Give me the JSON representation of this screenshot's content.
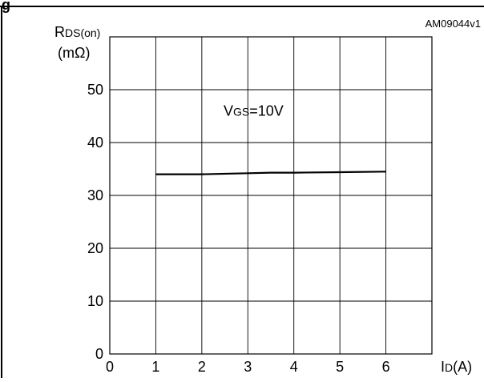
{
  "figure_label": "g",
  "ref_code": "AM09044v1",
  "chart_data": {
    "type": "line",
    "ylabel_main": "R",
    "ylabel_sub": "DS(on)",
    "ylabel_unit": "(mΩ)",
    "xlabel_main": "I",
    "xlabel_sub": "D",
    "xlabel_unit": "(A)",
    "xlim": [
      0,
      7
    ],
    "ylim": [
      0,
      60
    ],
    "x_ticks": [
      0,
      1,
      2,
      3,
      4,
      5,
      6
    ],
    "y_ticks": [
      0,
      10,
      20,
      30,
      40,
      50
    ],
    "grid": true,
    "annotation": {
      "main": "V",
      "sub": "GS",
      "rest": "=10V",
      "x": 3.5,
      "y": 46
    },
    "series": [
      {
        "x": [
          1,
          2,
          3,
          3.5,
          4,
          5,
          6
        ],
        "y": [
          34.0,
          34.0,
          34.2,
          34.3,
          34.3,
          34.4,
          34.5
        ]
      }
    ]
  }
}
